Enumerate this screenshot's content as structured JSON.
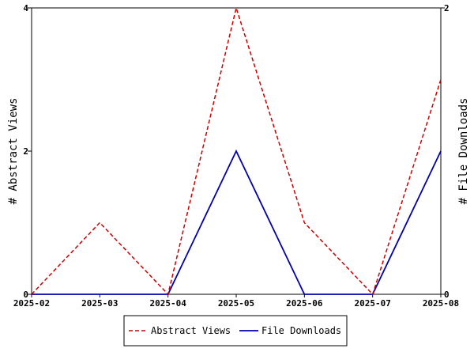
{
  "chart_data": {
    "type": "line",
    "x": [
      "2025-02",
      "2025-03",
      "2025-04",
      "2025-05",
      "2025-06",
      "2025-07",
      "2025-08"
    ],
    "series": [
      {
        "name": "Abstract Views",
        "axis": "left",
        "values": [
          0,
          1,
          0,
          4,
          1,
          0,
          3
        ],
        "color": "#cc0000",
        "style": "dashed"
      },
      {
        "name": "File Downloads",
        "axis": "right",
        "values": [
          0,
          0,
          0,
          1,
          0,
          0,
          1
        ],
        "color": "#0000aa",
        "style": "solid"
      }
    ],
    "ylabel_left": "# Abstract Views",
    "ylabel_right": "# File Downloads",
    "ylim_left": [
      0,
      4
    ],
    "ylim_right": [
      0,
      2
    ],
    "yticks_left": [
      "0",
      "2",
      "4"
    ],
    "yticks_right": [
      "0",
      "2"
    ],
    "grid": false,
    "legend_position": "bottom-center"
  }
}
